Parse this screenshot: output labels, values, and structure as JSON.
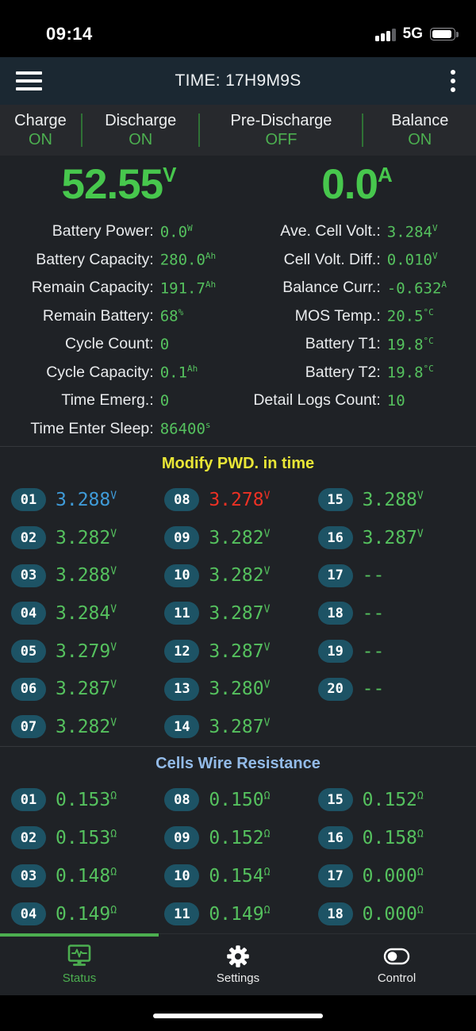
{
  "status_bar": {
    "time": "09:14",
    "network": "5G"
  },
  "header": {
    "title": "TIME: 17H9M9S"
  },
  "status_row": {
    "items": [
      {
        "label": "Charge",
        "value": "ON"
      },
      {
        "label": "Discharge",
        "value": "ON"
      },
      {
        "label": "Pre-Discharge",
        "value": "OFF"
      },
      {
        "label": "Balance",
        "value": "ON"
      }
    ]
  },
  "gauges": {
    "voltage": {
      "value": "52.55",
      "unit": "V"
    },
    "current": {
      "value": "0.0",
      "unit": "A"
    }
  },
  "info": {
    "left": [
      {
        "label": "Battery Power:",
        "value": "0.0",
        "unit": "W"
      },
      {
        "label": "Battery Capacity:",
        "value": "280.0",
        "unit": "Ah"
      },
      {
        "label": "Remain Capacity:",
        "value": "191.7",
        "unit": "Ah"
      },
      {
        "label": "Remain Battery:",
        "value": "68",
        "unit": "%"
      },
      {
        "label": "Cycle Count:",
        "value": "0",
        "unit": ""
      },
      {
        "label": "Cycle Capacity:",
        "value": "0.1",
        "unit": "Ah"
      },
      {
        "label": "Time Emerg.:",
        "value": "0",
        "unit": ""
      },
      {
        "label": "Time Enter Sleep:",
        "value": "86400",
        "unit": "s"
      }
    ],
    "right": [
      {
        "label": "Ave. Cell Volt.:",
        "value": "3.284",
        "unit": "V"
      },
      {
        "label": "Cell Volt. Diff.:",
        "value": "0.010",
        "unit": "V"
      },
      {
        "label": "Balance Curr.:",
        "value": "-0.632",
        "unit": "A"
      },
      {
        "label": "MOS Temp.:",
        "value": "20.5",
        "unit": "°C"
      },
      {
        "label": "Battery T1:",
        "value": "19.8",
        "unit": "°C"
      },
      {
        "label": "Battery T2:",
        "value": "19.8",
        "unit": "°C"
      },
      {
        "label": "Detail Logs Count:",
        "value": "10",
        "unit": ""
      }
    ]
  },
  "voltage_section": {
    "title": "Modify PWD. in time",
    "columns": [
      [
        {
          "id": "01",
          "value": "3.288",
          "unit": "V",
          "color": "blue"
        },
        {
          "id": "02",
          "value": "3.282",
          "unit": "V",
          "color": "green"
        },
        {
          "id": "03",
          "value": "3.288",
          "unit": "V",
          "color": "green"
        },
        {
          "id": "04",
          "value": "3.284",
          "unit": "V",
          "color": "green"
        },
        {
          "id": "05",
          "value": "3.279",
          "unit": "V",
          "color": "green"
        },
        {
          "id": "06",
          "value": "3.287",
          "unit": "V",
          "color": "green"
        },
        {
          "id": "07",
          "value": "3.282",
          "unit": "V",
          "color": "green"
        }
      ],
      [
        {
          "id": "08",
          "value": "3.278",
          "unit": "V",
          "color": "red"
        },
        {
          "id": "09",
          "value": "3.282",
          "unit": "V",
          "color": "green"
        },
        {
          "id": "10",
          "value": "3.282",
          "unit": "V",
          "color": "green"
        },
        {
          "id": "11",
          "value": "3.287",
          "unit": "V",
          "color": "green"
        },
        {
          "id": "12",
          "value": "3.287",
          "unit": "V",
          "color": "green"
        },
        {
          "id": "13",
          "value": "3.280",
          "unit": "V",
          "color": "green"
        },
        {
          "id": "14",
          "value": "3.287",
          "unit": "V",
          "color": "green"
        }
      ],
      [
        {
          "id": "15",
          "value": "3.288",
          "unit": "V",
          "color": "green"
        },
        {
          "id": "16",
          "value": "3.287",
          "unit": "V",
          "color": "green"
        },
        {
          "id": "17",
          "value": "--",
          "unit": "",
          "color": "green"
        },
        {
          "id": "18",
          "value": "--",
          "unit": "",
          "color": "green"
        },
        {
          "id": "19",
          "value": "--",
          "unit": "",
          "color": "green"
        },
        {
          "id": "20",
          "value": "--",
          "unit": "",
          "color": "green"
        }
      ]
    ]
  },
  "resistance_section": {
    "title": "Cells Wire Resistance",
    "columns": [
      [
        {
          "id": "01",
          "value": "0.153",
          "unit": "Ω",
          "color": "green"
        },
        {
          "id": "02",
          "value": "0.153",
          "unit": "Ω",
          "color": "green"
        },
        {
          "id": "03",
          "value": "0.148",
          "unit": "Ω",
          "color": "green"
        },
        {
          "id": "04",
          "value": "0.149",
          "unit": "Ω",
          "color": "green"
        }
      ],
      [
        {
          "id": "08",
          "value": "0.150",
          "unit": "Ω",
          "color": "green"
        },
        {
          "id": "09",
          "value": "0.152",
          "unit": "Ω",
          "color": "green"
        },
        {
          "id": "10",
          "value": "0.154",
          "unit": "Ω",
          "color": "green"
        },
        {
          "id": "11",
          "value": "0.149",
          "unit": "Ω",
          "color": "green"
        }
      ],
      [
        {
          "id": "15",
          "value": "0.152",
          "unit": "Ω",
          "color": "green"
        },
        {
          "id": "16",
          "value": "0.158",
          "unit": "Ω",
          "color": "green"
        },
        {
          "id": "17",
          "value": "0.000",
          "unit": "Ω",
          "color": "green"
        },
        {
          "id": "18",
          "value": "0.000",
          "unit": "Ω",
          "color": "green"
        }
      ]
    ]
  },
  "tab_bar": {
    "tabs": [
      {
        "label": "Status",
        "icon": "monitor-waveform-icon",
        "active": true
      },
      {
        "label": "Settings",
        "icon": "gear-icon",
        "active": false
      },
      {
        "label": "Control",
        "icon": "toggle-icon",
        "active": false
      }
    ]
  },
  "colors": {
    "accent_green": "#4caf50",
    "gauge_green": "#47c74d",
    "value_green": "#55c15e",
    "value_blue": "#3f9bd8",
    "value_red": "#ee3124",
    "heading_yellow": "#e9e636",
    "heading_blue": "#93bbe8",
    "badge_bg": "#1d5365",
    "header_bg": "#1b2832"
  }
}
